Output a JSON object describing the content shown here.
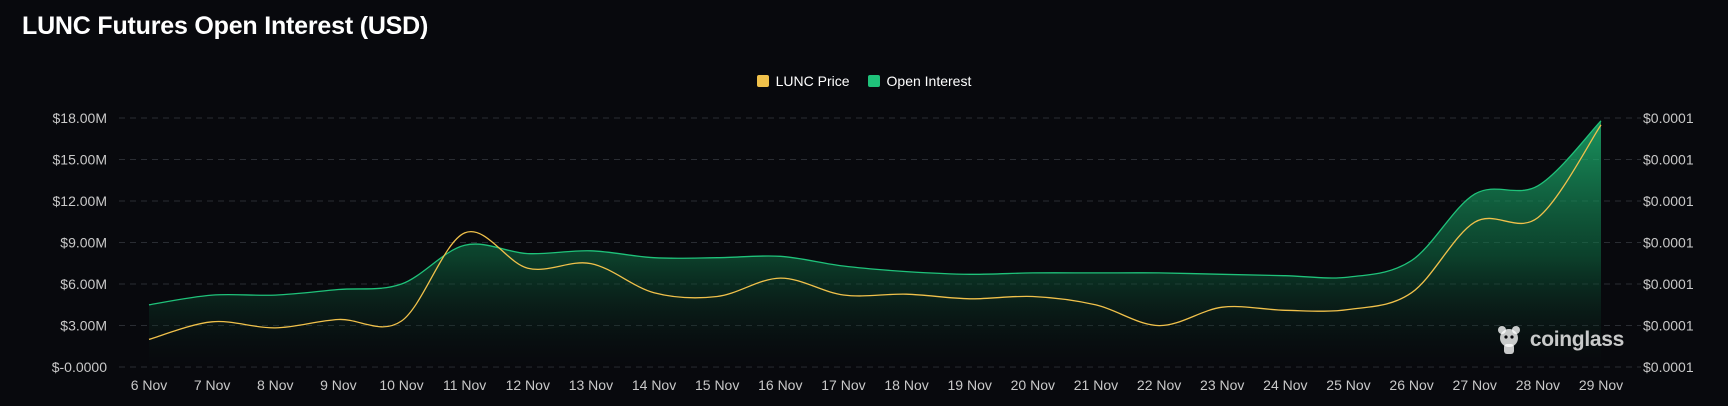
{
  "title": "LUNC Futures Open Interest (USD)",
  "legend": [
    {
      "label": "LUNC Price",
      "color": "#f0c14b"
    },
    {
      "label": "Open Interest",
      "color": "#1fc27a"
    }
  ],
  "watermark": "coinglass",
  "chart_data": {
    "type": "area",
    "title": "LUNC Futures Open Interest (USD)",
    "categories": [
      "6 Nov",
      "7 Nov",
      "8 Nov",
      "9 Nov",
      "10 Nov",
      "11 Nov",
      "12 Nov",
      "13 Nov",
      "14 Nov",
      "15 Nov",
      "16 Nov",
      "17 Nov",
      "18 Nov",
      "19 Nov",
      "20 Nov",
      "21 Nov",
      "22 Nov",
      "23 Nov",
      "24 Nov",
      "25 Nov",
      "26 Nov",
      "27 Nov",
      "28 Nov",
      "29 Nov"
    ],
    "y_left": {
      "ticks": [
        "$-0.0000",
        "$3.00M",
        "$6.00M",
        "$9.00M",
        "$12.00M",
        "$15.00M",
        "$18.00M"
      ],
      "tick_values": [
        0,
        3000000,
        6000000,
        9000000,
        12000000,
        15000000,
        18000000
      ],
      "ylim": [
        0,
        18000000
      ]
    },
    "y_right": {
      "ticks": [
        "$0.0001",
        "$0.0001",
        "$0.0001",
        "$0.0001",
        "$0.0001",
        "$0.0001",
        "$0.0001"
      ]
    },
    "grid": true,
    "legend_position": "top-center",
    "series": [
      {
        "name": "Open Interest",
        "axis": "left",
        "color": "#1fc27a",
        "style": "area",
        "values": [
          4500000,
          5200000,
          5200000,
          5600000,
          6000000,
          8800000,
          8200000,
          8400000,
          7900000,
          7900000,
          8000000,
          7300000,
          6900000,
          6700000,
          6800000,
          6800000,
          6800000,
          6700000,
          6600000,
          6500000,
          7700000,
          12500000,
          13100000,
          17800000
        ]
      },
      {
        "name": "LUNC Price",
        "axis": "right",
        "color": "#f0c14b",
        "style": "line",
        "values": [
          5.66e-05,
          5.89e-05,
          5.81e-05,
          5.92e-05,
          5.9e-05,
          7.05e-05,
          6.59e-05,
          6.65e-05,
          6.27e-05,
          6.22e-05,
          6.46e-05,
          6.24e-05,
          6.25e-05,
          6.19e-05,
          6.22e-05,
          6.11e-05,
          5.84e-05,
          6.08e-05,
          6.04e-05,
          6.05e-05,
          6.27e-05,
          7.19e-05,
          7.25e-05,
          8.46e-05
        ]
      }
    ]
  }
}
